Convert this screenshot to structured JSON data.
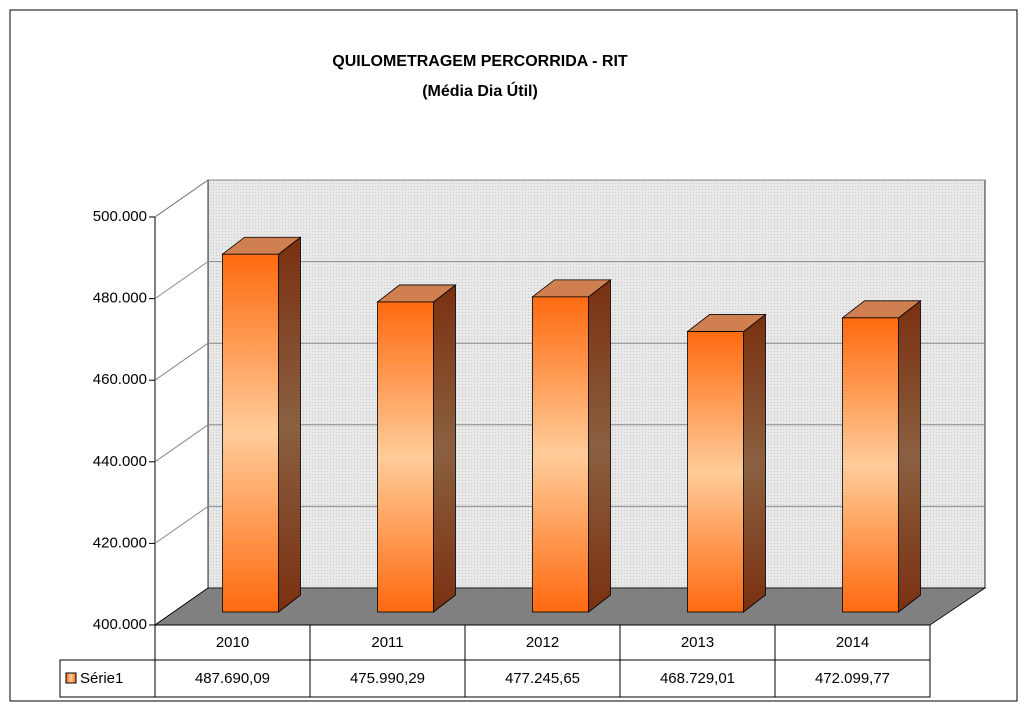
{
  "chart_data": {
    "type": "bar3d",
    "title": "QUILOMETRAGEM PERCORRIDA - RIT",
    "subtitle": "(Média Dia Útil)",
    "categories": [
      "2010",
      "2011",
      "2012",
      "2013",
      "2014"
    ],
    "series": [
      {
        "name": "Série1",
        "color": "#ff7a1a",
        "values": [
          487690.09,
          475990.29,
          477245.65,
          468729.01,
          472099.77
        ],
        "value_labels": [
          "487.690,09",
          "475.990,29",
          "477.245,65",
          "468.729,01",
          "472.099,77"
        ]
      }
    ],
    "ylim": [
      400000,
      500000
    ],
    "yticks": [
      {
        "value": 400000,
        "label": "400.000"
      },
      {
        "value": 420000,
        "label": "420.000"
      },
      {
        "value": 440000,
        "label": "440.000"
      },
      {
        "value": 460000,
        "label": "460.000"
      },
      {
        "value": 480000,
        "label": "480.000"
      },
      {
        "value": 500000,
        "label": "500.000"
      }
    ],
    "grid": true
  }
}
